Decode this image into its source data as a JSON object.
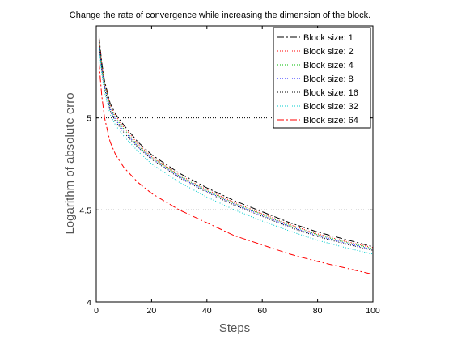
{
  "chart_data": {
    "type": "line",
    "title": "Change the rate of convergence while increasing the dimension of the block.",
    "xlabel": "Steps",
    "ylabel": "Logarithm of absolute erro",
    "xlim": [
      0,
      100
    ],
    "ylim": [
      4,
      5.5
    ],
    "xticks": [
      0,
      20,
      40,
      60,
      80,
      100
    ],
    "yticks": [
      4,
      4.5,
      5
    ],
    "ytick_labels": [
      "4",
      "4.5",
      "5"
    ],
    "grid": "horizontal dotted at 4.5 and 5",
    "legend_position": "top-right",
    "x": [
      1,
      2,
      3,
      5,
      7,
      10,
      15,
      20,
      30,
      40,
      50,
      60,
      70,
      80,
      90,
      100
    ],
    "series": [
      {
        "name": "Block size: 1",
        "color": "#000000",
        "style": "dashdot",
        "values": [
          5.44,
          5.3,
          5.2,
          5.08,
          5.02,
          4.96,
          4.87,
          4.8,
          4.7,
          4.62,
          4.55,
          4.49,
          4.43,
          4.38,
          4.34,
          4.3
        ]
      },
      {
        "name": "Block size: 2",
        "color": "#ff0000",
        "style": "dotted",
        "values": [
          5.43,
          5.29,
          5.19,
          5.07,
          5.01,
          4.95,
          4.86,
          4.79,
          4.69,
          4.61,
          4.54,
          4.48,
          4.42,
          4.37,
          4.33,
          4.295
        ]
      },
      {
        "name": "Block size: 4",
        "color": "#00bb00",
        "style": "dotted",
        "values": [
          5.42,
          5.28,
          5.18,
          5.06,
          5.0,
          4.94,
          4.85,
          4.785,
          4.685,
          4.605,
          4.535,
          4.475,
          4.415,
          4.365,
          4.325,
          4.29
        ]
      },
      {
        "name": "Block size: 8",
        "color": "#0000ff",
        "style": "dotted",
        "values": [
          5.41,
          5.27,
          5.17,
          5.05,
          4.99,
          4.93,
          4.845,
          4.78,
          4.68,
          4.6,
          4.53,
          4.47,
          4.41,
          4.36,
          4.32,
          4.285
        ]
      },
      {
        "name": "Block size: 16",
        "color": "#000000",
        "style": "dotted",
        "values": [
          5.4,
          5.26,
          5.16,
          5.04,
          4.98,
          4.92,
          4.84,
          4.775,
          4.675,
          4.595,
          4.525,
          4.465,
          4.405,
          4.355,
          4.315,
          4.28
        ]
      },
      {
        "name": "Block size: 32",
        "color": "#00cccc",
        "style": "dotted",
        "values": [
          5.38,
          5.24,
          5.14,
          5.02,
          4.96,
          4.9,
          4.82,
          4.75,
          4.65,
          4.57,
          4.5,
          4.44,
          4.385,
          4.335,
          4.295,
          4.26
        ]
      },
      {
        "name": "Block size: 64",
        "color": "#ff0000",
        "style": "dashdot",
        "values": [
          5.3,
          5.12,
          5.0,
          4.87,
          4.8,
          4.73,
          4.65,
          4.59,
          4.5,
          4.43,
          4.36,
          4.31,
          4.26,
          4.22,
          4.185,
          4.15
        ]
      }
    ]
  }
}
